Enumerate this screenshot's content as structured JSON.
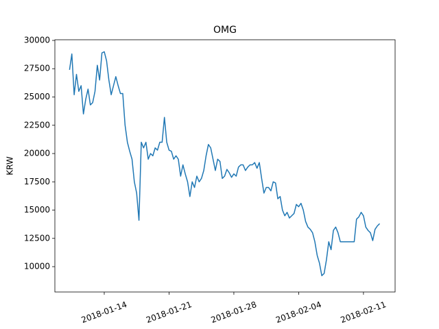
{
  "chart_data": {
    "type": "line",
    "title": "OMG",
    "ylabel": "KRW",
    "color": "#1f77b4",
    "x": [
      "2018-01-10 06:00",
      "2018-01-10 12:00",
      "2018-01-10 18:00",
      "2018-01-11 00:00",
      "2018-01-11 06:00",
      "2018-01-11 12:00",
      "2018-01-11 18:00",
      "2018-01-12 00:00",
      "2018-01-12 06:00",
      "2018-01-12 12:00",
      "2018-01-12 18:00",
      "2018-01-13 00:00",
      "2018-01-13 06:00",
      "2018-01-13 12:00",
      "2018-01-13 18:00",
      "2018-01-14 00:00",
      "2018-01-14 06:00",
      "2018-01-14 12:00",
      "2018-01-14 18:00",
      "2018-01-15 00:00",
      "2018-01-15 06:00",
      "2018-01-15 12:00",
      "2018-01-15 18:00",
      "2018-01-16 00:00",
      "2018-01-16 06:00",
      "2018-01-16 12:00",
      "2018-01-16 18:00",
      "2018-01-17 00:00",
      "2018-01-17 06:00",
      "2018-01-17 12:00",
      "2018-01-17 18:00",
      "2018-01-18 00:00",
      "2018-01-18 06:00",
      "2018-01-18 12:00",
      "2018-01-18 18:00",
      "2018-01-19 00:00",
      "2018-01-19 06:00",
      "2018-01-19 12:00",
      "2018-01-19 18:00",
      "2018-01-20 00:00",
      "2018-01-20 06:00",
      "2018-01-20 12:00",
      "2018-01-20 18:00",
      "2018-01-21 00:00",
      "2018-01-21 06:00",
      "2018-01-21 12:00",
      "2018-01-21 18:00",
      "2018-01-22 00:00",
      "2018-01-22 06:00",
      "2018-01-22 12:00",
      "2018-01-22 18:00",
      "2018-01-23 00:00",
      "2018-01-23 06:00",
      "2018-01-23 12:00",
      "2018-01-23 18:00",
      "2018-01-24 00:00",
      "2018-01-24 06:00",
      "2018-01-24 12:00",
      "2018-01-24 18:00",
      "2018-01-25 00:00",
      "2018-01-25 06:00",
      "2018-01-25 12:00",
      "2018-01-25 18:00",
      "2018-01-26 00:00",
      "2018-01-26 06:00",
      "2018-01-26 12:00",
      "2018-01-26 18:00",
      "2018-01-27 00:00",
      "2018-01-27 06:00",
      "2018-01-27 12:00",
      "2018-01-27 18:00",
      "2018-01-28 00:00",
      "2018-01-28 06:00",
      "2018-01-28 12:00",
      "2018-01-28 18:00",
      "2018-01-29 00:00",
      "2018-01-29 06:00",
      "2018-01-29 12:00",
      "2018-01-29 18:00",
      "2018-01-30 00:00",
      "2018-01-30 06:00",
      "2018-01-30 12:00",
      "2018-01-30 18:00",
      "2018-01-31 00:00",
      "2018-01-31 06:00",
      "2018-01-31 12:00",
      "2018-01-31 18:00",
      "2018-02-01 00:00",
      "2018-02-01 06:00",
      "2018-02-01 12:00",
      "2018-02-01 18:00",
      "2018-02-02 00:00",
      "2018-02-02 06:00",
      "2018-02-02 12:00",
      "2018-02-02 18:00",
      "2018-02-03 00:00",
      "2018-02-03 06:00",
      "2018-02-03 12:00",
      "2018-02-03 18:00",
      "2018-02-04 00:00",
      "2018-02-04 06:00",
      "2018-02-04 12:00",
      "2018-02-04 18:00",
      "2018-02-05 00:00",
      "2018-02-05 06:00",
      "2018-02-05 12:00",
      "2018-02-05 18:00",
      "2018-02-06 00:00",
      "2018-02-06 06:00",
      "2018-02-06 12:00",
      "2018-02-06 18:00",
      "2018-02-07 00:00",
      "2018-02-07 06:00",
      "2018-02-07 12:00",
      "2018-02-07 18:00",
      "2018-02-08 00:00",
      "2018-02-08 06:00",
      "2018-02-08 12:00",
      "2018-02-08 18:00",
      "2018-02-09 00:00",
      "2018-02-09 06:00",
      "2018-02-09 12:00",
      "2018-02-09 18:00",
      "2018-02-10 00:00",
      "2018-02-10 06:00",
      "2018-02-10 12:00",
      "2018-02-10 18:00",
      "2018-02-11 00:00",
      "2018-02-11 06:00",
      "2018-02-11 12:00",
      "2018-02-11 18:00",
      "2018-02-12 00:00",
      "2018-02-12 06:00",
      "2018-02-12 12:00",
      "2018-02-12 18:00"
    ],
    "values": [
      27400,
      28800,
      25200,
      27000,
      25500,
      26000,
      23500,
      24800,
      25700,
      24300,
      24500,
      25500,
      27800,
      26500,
      28900,
      29000,
      28200,
      26500,
      25200,
      26000,
      26800,
      26000,
      25300,
      25300,
      22500,
      21000,
      20200,
      19500,
      17500,
      16500,
      14100,
      21000,
      20500,
      21000,
      19500,
      20000,
      19800,
      20500,
      20300,
      21000,
      21000,
      23200,
      21000,
      20300,
      20200,
      19500,
      19800,
      19500,
      18000,
      19000,
      18200,
      17500,
      16200,
      17500,
      17000,
      18000,
      17500,
      17800,
      18500,
      19800,
      20800,
      20500,
      19500,
      18500,
      19500,
      19300,
      17800,
      18000,
      18600,
      18300,
      17900,
      18200,
      18000,
      18800,
      19000,
      19000,
      18500,
      18800,
      19000,
      19000,
      19200,
      18700,
      19200,
      17800,
      16500,
      17000,
      17000,
      16700,
      17500,
      17400,
      16000,
      16200,
      15000,
      14500,
      14800,
      14300,
      14500,
      14700,
      15500,
      15300,
      15600,
      15000,
      14000,
      13500,
      13300,
      13000,
      12200,
      11000,
      10300,
      9200,
      9400,
      10600,
      12200,
      11500,
      13200,
      13500,
      13000,
      12200,
      12200,
      12200,
      12200,
      12200,
      12200,
      12200,
      14200,
      14400,
      14800,
      14500,
      13500,
      13200,
      13000,
      12300,
      13300,
      13600,
      13800
    ],
    "xlim": [
      "2018-01-08 16:00",
      "2018-02-14 10:00"
    ],
    "xticks": [
      "2018-01-14",
      "2018-01-21",
      "2018-01-28",
      "2018-02-04",
      "2018-02-11"
    ],
    "ylim": [
      7760,
      30060
    ],
    "yticks": [
      10000,
      12500,
      15000,
      17500,
      20000,
      22500,
      25000,
      27500,
      30000
    ],
    "grid": false
  }
}
